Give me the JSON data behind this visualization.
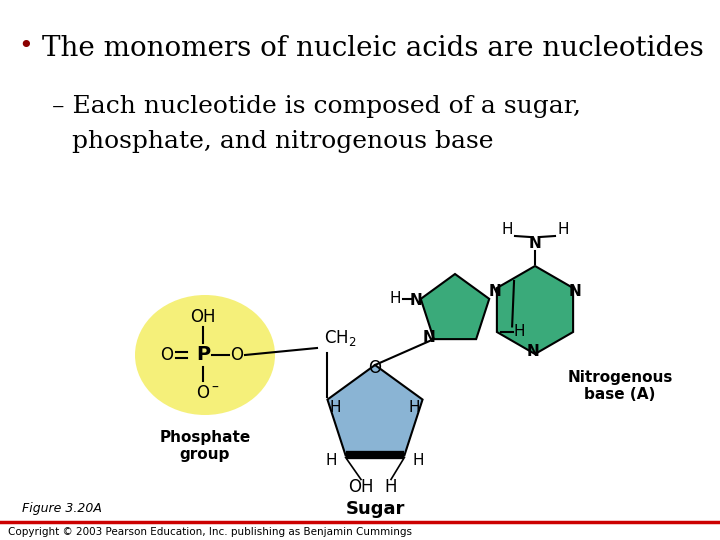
{
  "bg_color": "#ffffff",
  "title_bullet_dot": "•",
  "title_text": "The monomers of nucleic acids are nucleotides",
  "subtitle_dash": "–",
  "subtitle_line1": "Each nucleotide is composed of a sugar,",
  "subtitle_line2": "phosphate, and nitrogenous base",
  "title_fontsize": 20,
  "subtitle_fontsize": 18,
  "fig_caption": "Figure 3.20A",
  "copyright": "Copyright © 2003 Pearson Education, Inc. publishing as Benjamin Cummings",
  "phosphate_color": "#f5f07a",
  "sugar_color": "#8ab4d4",
  "nitro_color": "#3aaa7a",
  "label_phosphate": "Phosphate\ngroup",
  "label_sugar": "Sugar",
  "label_nitro": "Nitrogenous\nbase (A)",
  "bottom_line_color": "#cc0000",
  "bullet_color": "#8b0000"
}
